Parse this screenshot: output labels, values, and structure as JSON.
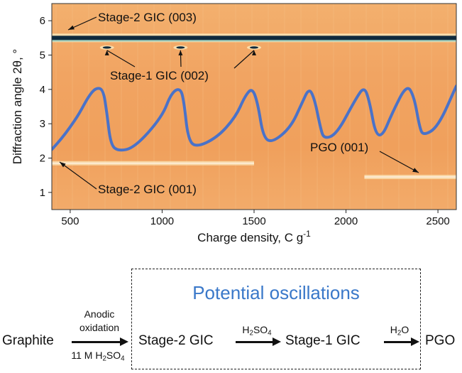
{
  "chart_data": {
    "type": "heatmap",
    "title": "",
    "xlabel": "Charge density, C g",
    "xlabel_sup": "-1",
    "ylabel": "Diffraction angle 2θ, °",
    "xlim": [
      400,
      2600
    ],
    "ylim": [
      0.5,
      6.5
    ],
    "xticks": [
      500,
      1000,
      1500,
      2000,
      2500
    ],
    "yticks": [
      1,
      2,
      3,
      4,
      5,
      6
    ],
    "grid": false,
    "colormap": {
      "background": "#f0a460",
      "high": "#fbe6b8",
      "peak": "#0f2a3d"
    },
    "bands": [
      {
        "x_start": 400,
        "x_end": 2600,
        "y": 5.5,
        "intensity": "very high"
      },
      {
        "x_start": 400,
        "x_end": 1500,
        "y": 1.85,
        "intensity": "medium"
      },
      {
        "x_start": 2100,
        "x_end": 2600,
        "y": 1.45,
        "intensity": "medium"
      }
    ],
    "spots": [
      {
        "x": 700,
        "y": 5.22
      },
      {
        "x": 1100,
        "y": 5.22
      },
      {
        "x": 1500,
        "y": 5.22
      }
    ],
    "series": [
      {
        "line_color": "#4a72c8",
        "x": [
          400,
          450,
          500,
          550,
          600,
          640,
          680,
          700,
          720,
          760,
          850,
          1000,
          1050,
          1100,
          1120,
          1140,
          1180,
          1300,
          1400,
          1450,
          1490,
          1520,
          1550,
          1600,
          1700,
          1760,
          1800,
          1830,
          1860,
          1880,
          1950,
          2050,
          2100,
          2130,
          2160,
          2200,
          2250,
          2330,
          2370,
          2400,
          2420,
          2500,
          2600
        ],
        "y": [
          2.25,
          2.55,
          2.9,
          3.3,
          3.8,
          4.05,
          4.0,
          3.3,
          2.4,
          2.2,
          2.3,
          3.2,
          3.9,
          4.05,
          3.6,
          2.6,
          2.3,
          2.6,
          3.2,
          3.8,
          4.05,
          3.6,
          2.6,
          2.45,
          2.9,
          3.6,
          4.05,
          3.7,
          2.9,
          2.55,
          2.7,
          3.7,
          4.1,
          3.6,
          2.7,
          2.65,
          3.3,
          4.15,
          3.8,
          2.9,
          2.65,
          2.9,
          4.1
        ]
      }
    ],
    "annotations": [
      {
        "text": "Stage-2 GIC (003)",
        "points_to": [
          {
            "x": 400,
            "y": 5.5
          }
        ]
      },
      {
        "text": "Stage-1 GIC (002)",
        "points_to": [
          {
            "x": 700,
            "y": 5.22
          },
          {
            "x": 1100,
            "y": 5.22
          },
          {
            "x": 1500,
            "y": 5.22
          }
        ]
      },
      {
        "text": "PGO (001)",
        "points_to": [
          {
            "x": 2390,
            "y": 1.5
          }
        ]
      },
      {
        "text": "Stage-2 GIC (001)",
        "points_to": [
          {
            "x": 400,
            "y": 1.85
          }
        ]
      }
    ]
  },
  "scheme": {
    "box_title": "Potential oscillations",
    "start": "Graphite",
    "step1_top": "Anodic",
    "step1_mid": "oxidation",
    "step1_bottom_prefix": "11 M H",
    "step1_bottom_sub1": "2",
    "step1_bottom_mid": "SO",
    "step1_bottom_sub2": "4",
    "node2": "Stage-2 GIC",
    "step2_prefix": "H",
    "step2_sub1": "2",
    "step2_mid": "SO",
    "step2_sub2": "4",
    "node3": "Stage-1 GIC",
    "step3_prefix": "H",
    "step3_sub": "2",
    "step3_suffix": "O",
    "end": "PGO"
  }
}
